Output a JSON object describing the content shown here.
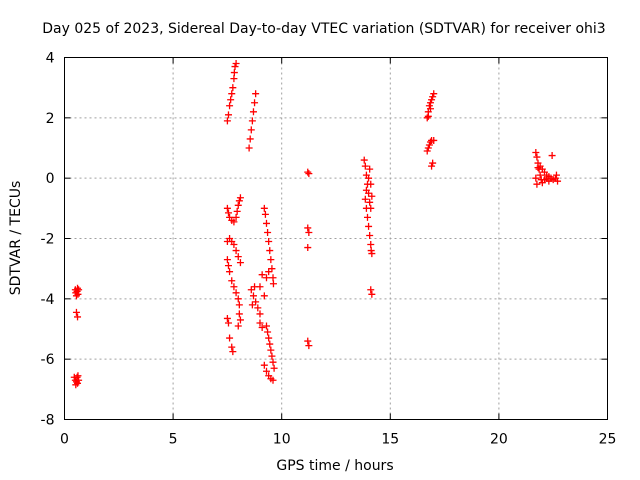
{
  "chart_data": {
    "type": "scatter",
    "title": "Day 025 of 2023, Sidereal Day-to-day VTEC variation (SDTVAR) for receiver ohi3",
    "xlabel": "GPS time / hours",
    "ylabel": "SDTVAR / TECUs",
    "xlim": [
      0,
      25
    ],
    "ylim": [
      -8,
      4
    ],
    "x_ticks": [
      0,
      5,
      10,
      15,
      20,
      25
    ],
    "x_tick_labels": [
      "0",
      "5",
      "10",
      "15",
      "20",
      "25"
    ],
    "y_ticks": [
      -8,
      -6,
      -4,
      -2,
      0,
      2,
      4
    ],
    "y_tick_labels": [
      "-8",
      "-6",
      "-4",
      "-2",
      "0",
      "2",
      "4"
    ],
    "grid": true,
    "marker": "+",
    "color": "#ff0000",
    "series": [
      {
        "name": "SDTVAR",
        "points": [
          [
            0.5,
            -3.7
          ],
          [
            0.52,
            -3.8
          ],
          [
            0.55,
            -3.9
          ],
          [
            0.58,
            -3.75
          ],
          [
            0.6,
            -3.65
          ],
          [
            0.62,
            -3.85
          ],
          [
            0.65,
            -3.7
          ],
          [
            0.55,
            -4.45
          ],
          [
            0.6,
            -4.6
          ],
          [
            0.45,
            -6.6
          ],
          [
            0.5,
            -6.7
          ],
          [
            0.52,
            -6.85
          ],
          [
            0.55,
            -6.75
          ],
          [
            0.58,
            -6.6
          ],
          [
            0.6,
            -6.8
          ],
          [
            0.65,
            -6.7
          ],
          [
            0.62,
            -6.55
          ],
          [
            7.5,
            1.9
          ],
          [
            7.55,
            2.1
          ],
          [
            7.6,
            2.4
          ],
          [
            7.65,
            2.6
          ],
          [
            7.7,
            2.8
          ],
          [
            7.75,
            3.0
          ],
          [
            7.8,
            3.3
          ],
          [
            7.82,
            3.5
          ],
          [
            7.85,
            3.7
          ],
          [
            7.9,
            3.8
          ],
          [
            8.5,
            1.0
          ],
          [
            8.55,
            1.3
          ],
          [
            8.6,
            1.6
          ],
          [
            8.65,
            1.9
          ],
          [
            8.7,
            2.2
          ],
          [
            8.75,
            2.5
          ],
          [
            8.8,
            2.8
          ],
          [
            7.5,
            -1.0
          ],
          [
            7.55,
            -1.15
          ],
          [
            7.6,
            -1.3
          ],
          [
            7.7,
            -1.4
          ],
          [
            7.8,
            -1.45
          ],
          [
            7.9,
            -1.3
          ],
          [
            7.95,
            -1.1
          ],
          [
            8.0,
            -0.9
          ],
          [
            8.05,
            -0.75
          ],
          [
            8.1,
            -0.65
          ],
          [
            7.5,
            -2.1
          ],
          [
            7.6,
            -2.0
          ],
          [
            7.7,
            -2.1
          ],
          [
            7.8,
            -2.2
          ],
          [
            7.9,
            -2.4
          ],
          [
            8.0,
            -2.6
          ],
          [
            8.1,
            -2.8
          ],
          [
            7.5,
            -2.7
          ],
          [
            7.55,
            -2.9
          ],
          [
            7.6,
            -3.1
          ],
          [
            7.7,
            -3.4
          ],
          [
            7.8,
            -3.6
          ],
          [
            7.9,
            -3.8
          ],
          [
            8.0,
            -4.0
          ],
          [
            8.05,
            -4.2
          ],
          [
            7.5,
            -4.65
          ],
          [
            7.55,
            -4.8
          ],
          [
            7.6,
            -5.3
          ],
          [
            7.7,
            -5.6
          ],
          [
            7.75,
            -5.75
          ],
          [
            8.05,
            -4.5
          ],
          [
            8.1,
            -4.7
          ],
          [
            8.0,
            -4.9
          ],
          [
            8.6,
            -3.7
          ],
          [
            8.7,
            -3.9
          ],
          [
            8.8,
            -4.1
          ],
          [
            8.9,
            -4.3
          ],
          [
            9.0,
            -4.5
          ],
          [
            8.75,
            -3.6
          ],
          [
            8.65,
            -4.2
          ],
          [
            9.1,
            -3.2
          ],
          [
            9.0,
            -3.6
          ],
          [
            9.2,
            -3.9
          ],
          [
            9.0,
            -4.8
          ],
          [
            9.1,
            -4.95
          ],
          [
            9.2,
            -1.0
          ],
          [
            9.25,
            -1.2
          ],
          [
            9.3,
            -1.5
          ],
          [
            9.35,
            -1.8
          ],
          [
            9.4,
            -2.1
          ],
          [
            9.45,
            -2.4
          ],
          [
            9.5,
            -2.7
          ],
          [
            9.55,
            -3.0
          ],
          [
            9.6,
            -3.3
          ],
          [
            9.62,
            -3.5
          ],
          [
            9.4,
            -3.1
          ],
          [
            9.3,
            -3.3
          ],
          [
            9.3,
            -4.9
          ],
          [
            9.35,
            -5.1
          ],
          [
            9.4,
            -5.3
          ],
          [
            9.45,
            -5.5
          ],
          [
            9.5,
            -5.7
          ],
          [
            9.55,
            -5.9
          ],
          [
            9.6,
            -6.1
          ],
          [
            9.65,
            -6.3
          ],
          [
            9.2,
            -6.2
          ],
          [
            9.3,
            -6.4
          ],
          [
            9.4,
            -6.55
          ],
          [
            9.5,
            -6.65
          ],
          [
            9.6,
            -6.7
          ],
          [
            11.2,
            0.2
          ],
          [
            11.25,
            0.15
          ],
          [
            11.2,
            -1.65
          ],
          [
            11.25,
            -1.8
          ],
          [
            11.2,
            -2.3
          ],
          [
            11.2,
            -5.4
          ],
          [
            11.25,
            -5.55
          ],
          [
            13.8,
            0.6
          ],
          [
            13.85,
            0.4
          ],
          [
            13.9,
            0.1
          ],
          [
            13.95,
            -0.2
          ],
          [
            14.0,
            -0.5
          ],
          [
            14.05,
            -0.8
          ],
          [
            14.1,
            -1.0
          ],
          [
            14.15,
            -0.6
          ],
          [
            14.1,
            -0.2
          ],
          [
            14.05,
            0.3
          ],
          [
            14.0,
            0.0
          ],
          [
            13.9,
            -0.4
          ],
          [
            13.85,
            -0.7
          ],
          [
            13.9,
            -1.0
          ],
          [
            13.95,
            -1.3
          ],
          [
            14.0,
            -1.6
          ],
          [
            14.05,
            -1.9
          ],
          [
            14.1,
            -2.2
          ],
          [
            14.12,
            -2.4
          ],
          [
            14.15,
            -2.5
          ],
          [
            14.1,
            -3.7
          ],
          [
            14.15,
            -3.85
          ],
          [
            16.7,
            2.0
          ],
          [
            16.75,
            2.2
          ],
          [
            16.8,
            2.4
          ],
          [
            16.85,
            2.5
          ],
          [
            16.9,
            2.6
          ],
          [
            16.95,
            2.7
          ],
          [
            17.0,
            2.8
          ],
          [
            16.75,
            2.05
          ],
          [
            16.85,
            2.3
          ],
          [
            16.7,
            0.9
          ],
          [
            16.75,
            1.0
          ],
          [
            16.8,
            1.1
          ],
          [
            16.85,
            1.2
          ],
          [
            16.9,
            1.25
          ],
          [
            17.0,
            1.25
          ],
          [
            16.9,
            0.4
          ],
          [
            16.95,
            0.5
          ],
          [
            21.7,
            0.85
          ],
          [
            21.75,
            0.7
          ],
          [
            21.8,
            0.5
          ],
          [
            21.85,
            0.3
          ],
          [
            21.9,
            0.1
          ],
          [
            21.95,
            -0.05
          ],
          [
            22.0,
            -0.15
          ],
          [
            21.7,
            0.0
          ],
          [
            21.75,
            -0.2
          ],
          [
            21.8,
            0.35
          ],
          [
            21.9,
            0.4
          ],
          [
            22.0,
            0.3
          ],
          [
            22.1,
            0.2
          ],
          [
            22.2,
            0.1
          ],
          [
            22.3,
            0.05
          ],
          [
            22.4,
            0.0
          ],
          [
            22.5,
            -0.05
          ],
          [
            22.6,
            0.0
          ],
          [
            22.65,
            0.1
          ],
          [
            22.7,
            -0.1
          ],
          [
            22.3,
            -0.1
          ],
          [
            22.2,
            0.0
          ],
          [
            22.1,
            -0.05
          ],
          [
            22.45,
            0.75
          ]
        ]
      }
    ]
  }
}
